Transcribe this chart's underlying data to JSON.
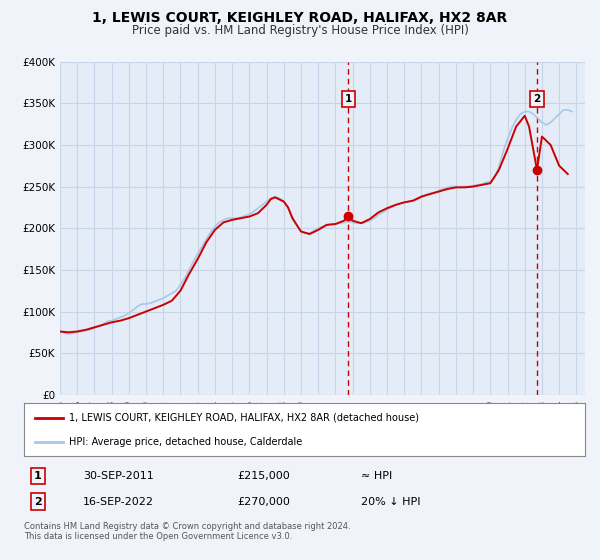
{
  "title": "1, LEWIS COURT, KEIGHLEY ROAD, HALIFAX, HX2 8AR",
  "subtitle": "Price paid vs. HM Land Registry's House Price Index (HPI)",
  "title_fontsize": 10,
  "subtitle_fontsize": 8.5,
  "bg_color": "#f0f4fa",
  "plot_bg_color": "#e4ecf7",
  "grid_color": "#c8d4e8",
  "hpi_line_color": "#a8c8e8",
  "price_line_color": "#cc0000",
  "marker_color": "#cc0000",
  "ylim": [
    0,
    400000
  ],
  "xlim_start": 1995.0,
  "xlim_end": 2025.5,
  "yticks": [
    0,
    50000,
    100000,
    150000,
    200000,
    250000,
    300000,
    350000,
    400000
  ],
  "ytick_labels": [
    "£0",
    "£50K",
    "£100K",
    "£150K",
    "£200K",
    "£250K",
    "£300K",
    "£350K",
    "£400K"
  ],
  "xtick_years": [
    1995,
    1996,
    1997,
    1998,
    1999,
    2000,
    2001,
    2002,
    2003,
    2004,
    2005,
    2006,
    2007,
    2008,
    2009,
    2010,
    2011,
    2012,
    2013,
    2014,
    2015,
    2016,
    2017,
    2018,
    2019,
    2020,
    2021,
    2022,
    2023,
    2024,
    2025
  ],
  "sale1_date": "30-SEP-2011",
  "sale1_price": 215000,
  "sale1_hpi_relation": "≈ HPI",
  "sale1_x": 2011.75,
  "sale1_label": "1",
  "sale2_date": "16-SEP-2022",
  "sale2_price": 270000,
  "sale2_hpi_relation": "20% ↓ HPI",
  "sale2_x": 2022.71,
  "sale2_label": "2",
  "legend_house_label": "1, LEWIS COURT, KEIGHLEY ROAD, HALIFAX, HX2 8AR (detached house)",
  "legend_hpi_label": "HPI: Average price, detached house, Calderdale",
  "footer_text": "Contains HM Land Registry data © Crown copyright and database right 2024.\nThis data is licensed under the Open Government Licence v3.0.",
  "hpi_data_x": [
    1995.0,
    1995.25,
    1995.5,
    1995.75,
    1996.0,
    1996.25,
    1996.5,
    1996.75,
    1997.0,
    1997.25,
    1997.5,
    1997.75,
    1998.0,
    1998.25,
    1998.5,
    1998.75,
    1999.0,
    1999.25,
    1999.5,
    1999.75,
    2000.0,
    2000.25,
    2000.5,
    2000.75,
    2001.0,
    2001.25,
    2001.5,
    2001.75,
    2002.0,
    2002.25,
    2002.5,
    2002.75,
    2003.0,
    2003.25,
    2003.5,
    2003.75,
    2004.0,
    2004.25,
    2004.5,
    2004.75,
    2005.0,
    2005.25,
    2005.5,
    2005.75,
    2006.0,
    2006.25,
    2006.5,
    2006.75,
    2007.0,
    2007.25,
    2007.5,
    2007.75,
    2008.0,
    2008.25,
    2008.5,
    2008.75,
    2009.0,
    2009.25,
    2009.5,
    2009.75,
    2010.0,
    2010.25,
    2010.5,
    2010.75,
    2011.0,
    2011.25,
    2011.5,
    2011.75,
    2012.0,
    2012.25,
    2012.5,
    2012.75,
    2013.0,
    2013.25,
    2013.5,
    2013.75,
    2014.0,
    2014.25,
    2014.5,
    2014.75,
    2015.0,
    2015.25,
    2015.5,
    2015.75,
    2016.0,
    2016.25,
    2016.5,
    2016.75,
    2017.0,
    2017.25,
    2017.5,
    2017.75,
    2018.0,
    2018.25,
    2018.5,
    2018.75,
    2019.0,
    2019.25,
    2019.5,
    2019.75,
    2020.0,
    2020.25,
    2020.5,
    2020.75,
    2021.0,
    2021.25,
    2021.5,
    2021.75,
    2022.0,
    2022.25,
    2022.5,
    2022.75,
    2023.0,
    2023.25,
    2023.5,
    2023.75,
    2024.0,
    2024.25,
    2024.5,
    2024.75
  ],
  "hpi_data_y": [
    76000,
    74000,
    73000,
    74000,
    75000,
    76000,
    77000,
    78000,
    80000,
    82000,
    85000,
    88000,
    89000,
    91000,
    93000,
    95000,
    98000,
    102000,
    106000,
    109000,
    109000,
    110000,
    112000,
    114000,
    116000,
    119000,
    122000,
    125000,
    132000,
    140000,
    150000,
    160000,
    169000,
    178000,
    187000,
    195000,
    202000,
    207000,
    210000,
    212000,
    212000,
    212000,
    213000,
    215000,
    217000,
    220000,
    224000,
    228000,
    232000,
    236000,
    238000,
    236000,
    232000,
    224000,
    214000,
    204000,
    197000,
    194000,
    194000,
    197000,
    200000,
    202000,
    204000,
    205000,
    205000,
    206000,
    207000,
    208000,
    207000,
    206000,
    206000,
    207000,
    209000,
    212000,
    216000,
    219000,
    222000,
    225000,
    228000,
    230000,
    231000,
    232000,
    233000,
    234000,
    237000,
    240000,
    242000,
    243000,
    245000,
    247000,
    249000,
    250000,
    250000,
    250000,
    250000,
    250000,
    251000,
    252000,
    253000,
    255000,
    256000,
    260000,
    274000,
    292000,
    307000,
    320000,
    330000,
    337000,
    340000,
    340000,
    337000,
    332000,
    327000,
    324000,
    327000,
    332000,
    337000,
    342000,
    342000,
    340000
  ],
  "price_data_x": [
    1995.0,
    1995.5,
    1996.0,
    1996.5,
    1997.0,
    1997.5,
    1998.0,
    1998.5,
    1999.0,
    1999.5,
    2000.0,
    2000.5,
    2001.0,
    2001.5,
    2002.0,
    2002.5,
    2003.0,
    2003.5,
    2004.0,
    2004.5,
    2005.0,
    2005.5,
    2006.0,
    2006.5,
    2007.0,
    2007.25,
    2007.5,
    2008.0,
    2008.25,
    2008.5,
    2009.0,
    2009.5,
    2010.0,
    2010.5,
    2011.0,
    2011.5,
    2011.75,
    2012.0,
    2012.5,
    2013.0,
    2013.5,
    2014.0,
    2014.5,
    2015.0,
    2015.5,
    2016.0,
    2016.5,
    2017.0,
    2017.5,
    2018.0,
    2018.5,
    2019.0,
    2019.5,
    2020.0,
    2020.5,
    2021.0,
    2021.5,
    2022.0,
    2022.25,
    2022.71,
    2023.0,
    2023.5,
    2024.0,
    2024.5
  ],
  "price_data_y": [
    76000,
    75000,
    76000,
    78000,
    81000,
    84000,
    87000,
    89000,
    92000,
    96000,
    100000,
    104000,
    108000,
    113000,
    125000,
    145000,
    163000,
    183000,
    198000,
    207000,
    210000,
    212000,
    214000,
    218000,
    228000,
    235000,
    237000,
    232000,
    225000,
    212000,
    196000,
    193000,
    198000,
    204000,
    205000,
    209000,
    215000,
    209000,
    206000,
    211000,
    219000,
    224000,
    228000,
    231000,
    233000,
    238000,
    241000,
    244000,
    247000,
    249000,
    249000,
    250000,
    252000,
    254000,
    270000,
    295000,
    322000,
    335000,
    322000,
    270000,
    310000,
    300000,
    275000,
    265000
  ]
}
